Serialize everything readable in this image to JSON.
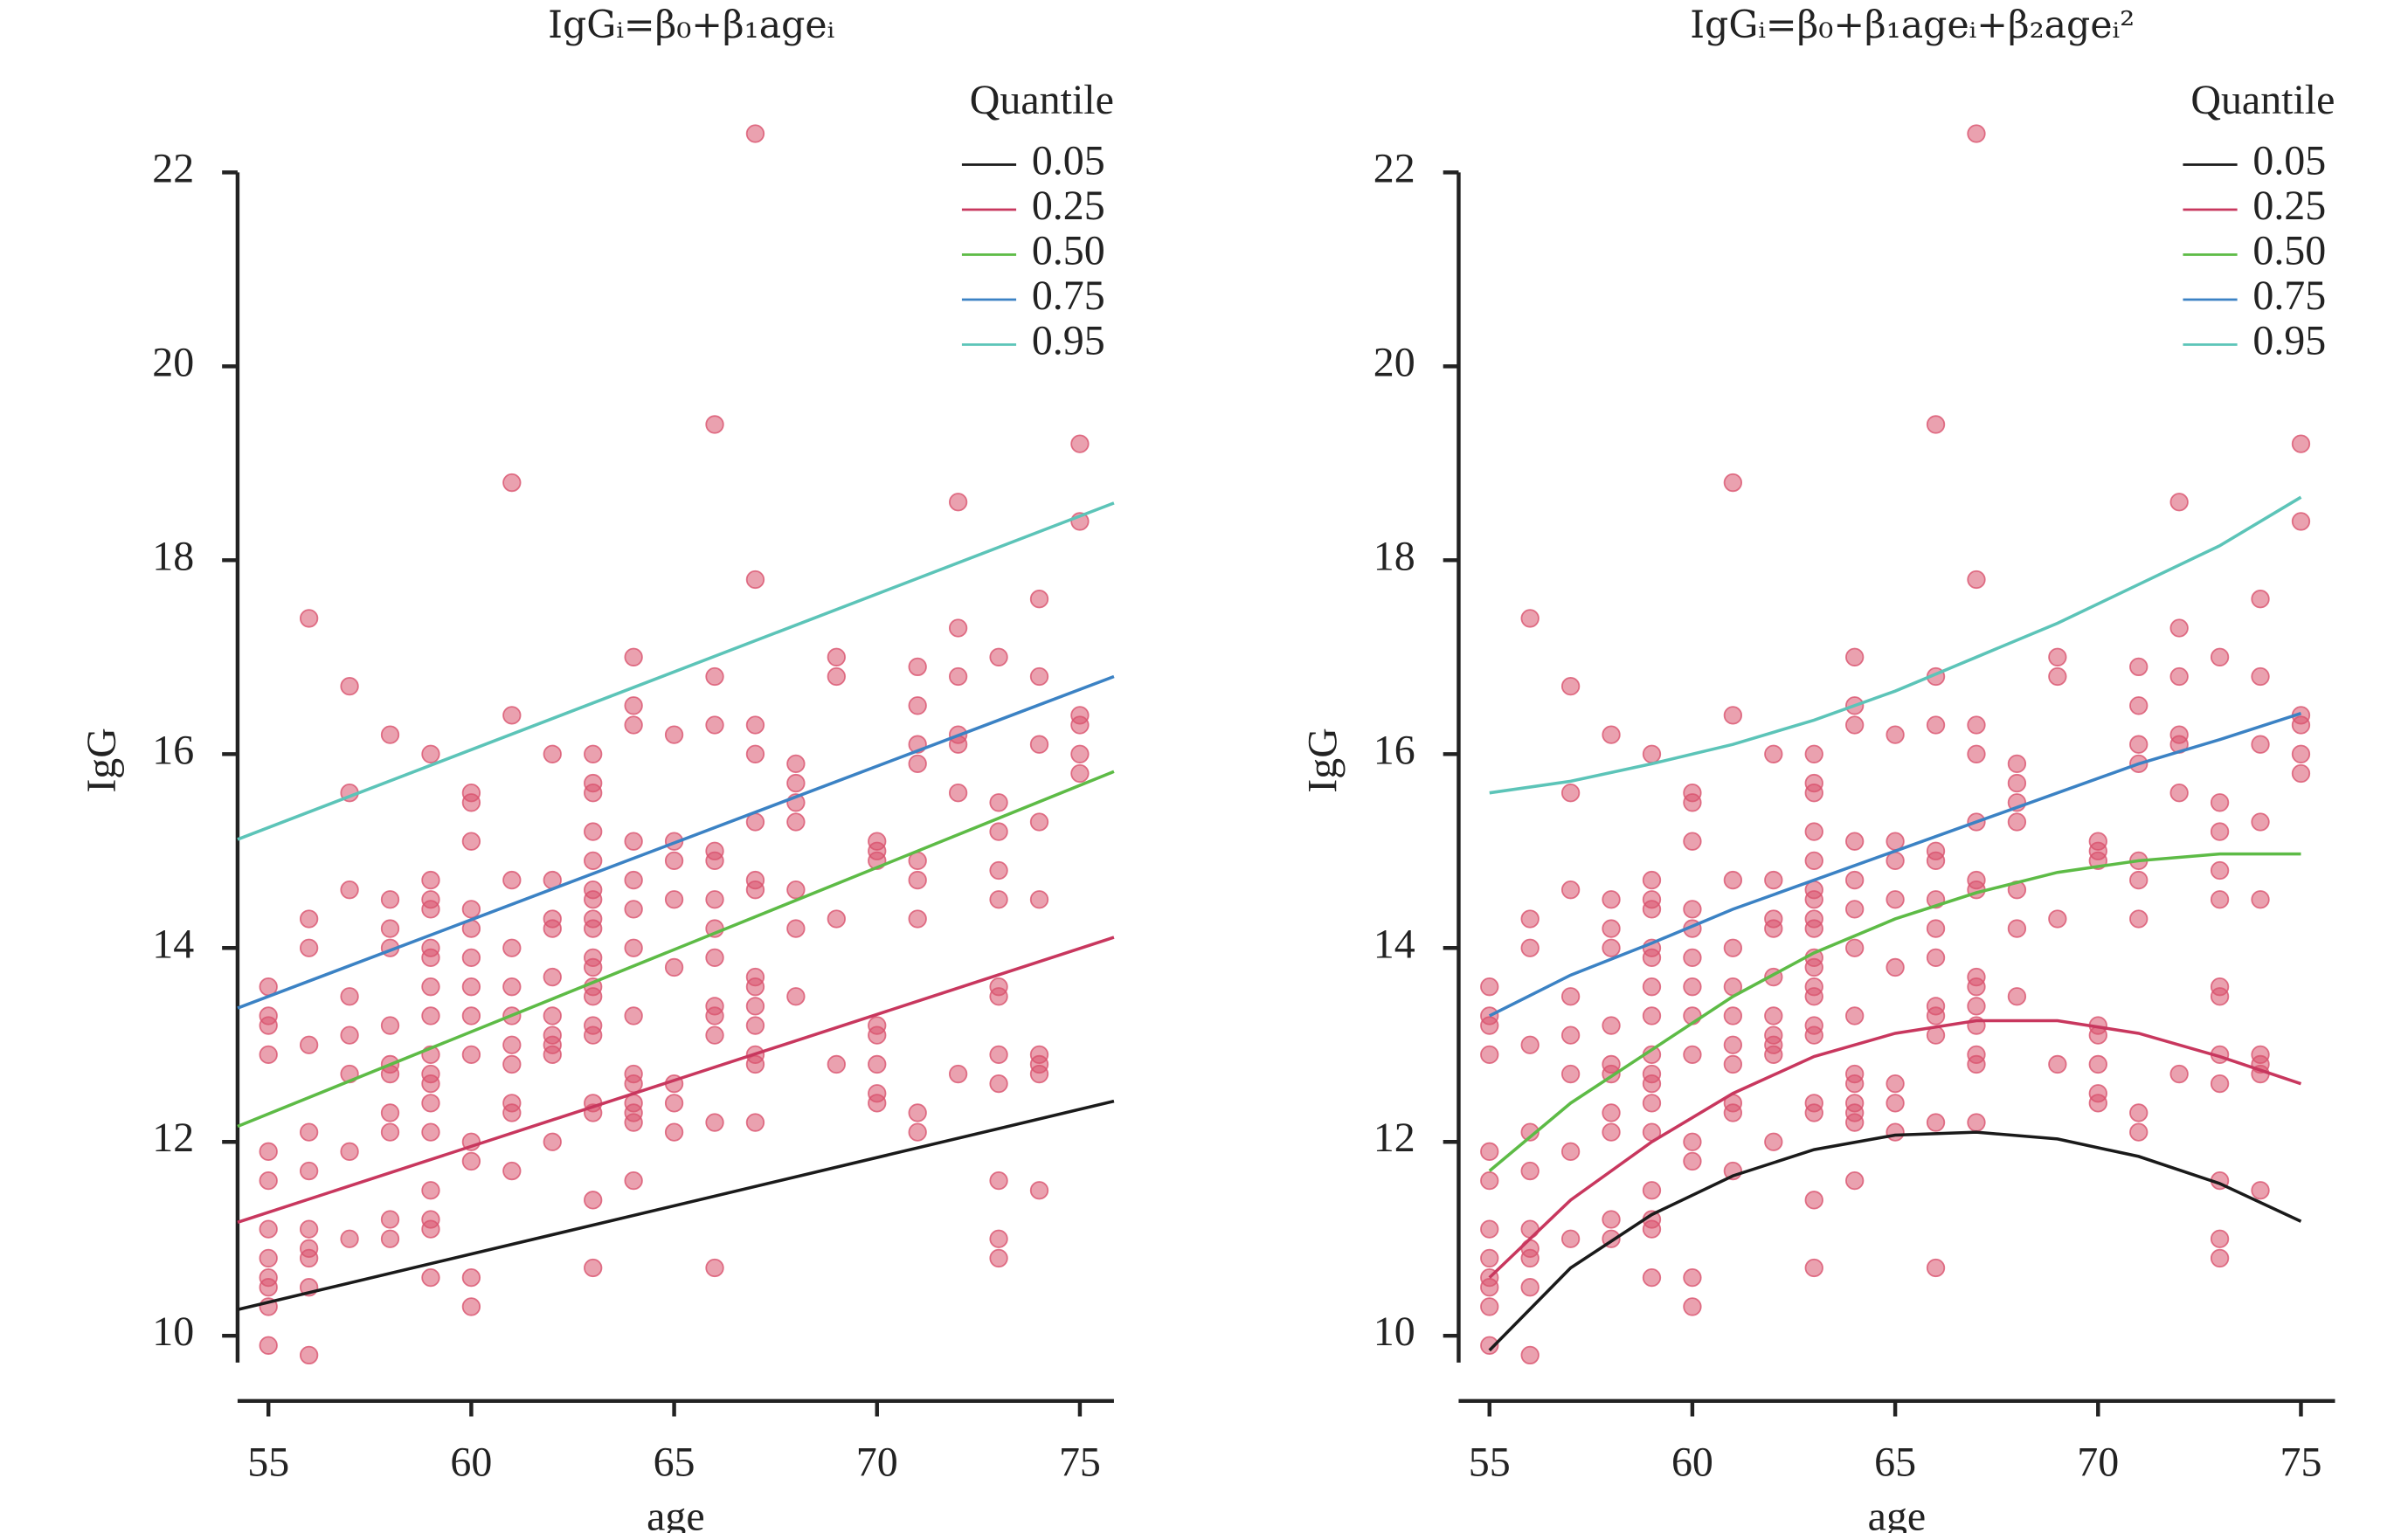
{
  "chart_data": [
    {
      "type": "scatter",
      "title": "IgGᵢ=β₀+β₁ageᵢ",
      "xlabel": "age",
      "ylabel": "IgG",
      "legend_title": "Quantile",
      "legend": "upper right",
      "xlim": [
        54.24,
        75.84
      ],
      "ylim": [
        9.5,
        22.5
      ],
      "xticks": [
        55,
        60,
        65,
        70,
        75
      ],
      "yticks": [
        10,
        12,
        14,
        16,
        18,
        20,
        22
      ],
      "points": {
        "color": "#d9536e",
        "x": [
          55,
          55,
          55,
          55,
          55,
          55,
          55,
          55,
          55,
          55,
          55,
          55,
          56,
          56,
          56,
          56,
          56,
          56,
          56,
          56,
          56,
          56,
          56,
          57,
          57,
          57,
          57,
          57,
          57,
          57,
          57,
          58,
          58,
          58,
          58,
          58,
          58,
          58,
          58,
          58,
          58,
          58,
          59,
          59,
          59,
          59,
          59,
          59,
          59,
          59,
          59,
          59,
          59,
          59,
          59,
          59,
          59,
          59,
          59,
          60,
          60,
          60,
          60,
          60,
          60,
          60,
          60,
          60,
          60,
          60,
          60,
          60,
          61,
          61,
          61,
          61,
          61,
          61,
          61,
          61,
          61,
          61,
          61,
          62,
          62,
          62,
          62,
          62,
          62,
          62,
          62,
          62,
          62,
          63,
          63,
          63,
          63,
          63,
          63,
          63,
          63,
          63,
          63,
          63,
          63,
          63,
          63,
          63,
          63,
          63,
          63,
          63,
          64,
          64,
          64,
          64,
          64,
          64,
          64,
          64,
          64,
          64,
          64,
          64,
          64,
          64,
          65,
          65,
          65,
          65,
          65,
          65,
          65,
          65,
          66,
          66,
          66,
          66,
          66,
          66,
          66,
          66,
          66,
          66,
          66,
          66,
          66,
          67,
          67,
          67,
          67,
          67,
          67,
          67,
          67,
          67,
          67,
          67,
          67,
          67,
          67,
          68,
          68,
          68,
          68,
          68,
          68,
          68,
          69,
          69,
          69,
          69,
          70,
          70,
          70,
          70,
          70,
          70,
          70,
          70,
          71,
          71,
          71,
          71,
          71,
          71,
          71,
          71,
          71,
          72,
          72,
          72,
          72,
          72,
          72,
          72,
          73,
          73,
          73,
          73,
          73,
          73,
          73,
          73,
          73,
          73,
          73,
          73,
          74,
          74,
          74,
          74,
          74,
          74,
          74,
          74,
          74,
          75,
          75,
          75,
          75,
          75,
          75
        ],
        "y": [
          13.6,
          13.3,
          13.2,
          12.9,
          11.9,
          11.6,
          11.1,
          10.8,
          10.6,
          10.5,
          10.3,
          9.9,
          17.4,
          14.3,
          14.0,
          13.0,
          12.1,
          11.7,
          11.1,
          10.9,
          10.8,
          10.5,
          9.8,
          16.7,
          15.6,
          14.6,
          13.5,
          13.1,
          12.7,
          11.9,
          11.0,
          16.2,
          14.5,
          14.2,
          14.0,
          13.2,
          12.8,
          12.7,
          12.3,
          12.1,
          11.2,
          11.0,
          16.0,
          14.7,
          14.5,
          14.4,
          14.0,
          13.9,
          13.6,
          13.3,
          12.9,
          12.7,
          12.6,
          12.4,
          12.1,
          11.5,
          11.2,
          11.1,
          10.6,
          15.6,
          15.5,
          15.1,
          14.4,
          14.2,
          13.9,
          13.6,
          13.3,
          12.9,
          12.0,
          11.8,
          10.6,
          10.3,
          18.8,
          16.4,
          14.7,
          14.0,
          13.6,
          13.3,
          13.0,
          12.8,
          12.4,
          12.3,
          11.7,
          16.0,
          14.7,
          14.3,
          14.2,
          13.7,
          13.3,
          13.1,
          13.0,
          12.9,
          12.0,
          16.0,
          15.7,
          15.6,
          15.2,
          14.9,
          14.6,
          14.5,
          14.3,
          14.2,
          13.9,
          13.8,
          13.6,
          13.5,
          13.2,
          13.1,
          12.4,
          12.3,
          11.4,
          10.7,
          17.0,
          16.5,
          16.3,
          15.1,
          14.7,
          14.4,
          14.0,
          13.3,
          12.7,
          12.6,
          12.4,
          12.3,
          12.2,
          11.6,
          16.2,
          15.1,
          14.9,
          14.5,
          13.8,
          12.6,
          12.4,
          12.1,
          19.4,
          16.8,
          16.3,
          15.0,
          14.9,
          14.5,
          14.2,
          13.9,
          13.4,
          13.3,
          13.1,
          12.2,
          10.7,
          22.4,
          17.8,
          16.3,
          16.0,
          15.3,
          14.7,
          14.6,
          13.7,
          13.6,
          13.4,
          13.2,
          12.9,
          12.8,
          12.2,
          15.9,
          15.7,
          15.5,
          15.3,
          14.6,
          14.2,
          13.5,
          17.0,
          16.8,
          14.3,
          12.8,
          15.1,
          15.0,
          14.9,
          13.2,
          13.1,
          12.8,
          12.5,
          12.4,
          16.9,
          16.5,
          16.1,
          15.9,
          14.9,
          14.7,
          14.3,
          12.3,
          12.1,
          18.6,
          17.3,
          16.8,
          16.2,
          16.1,
          15.6,
          12.7,
          17.0,
          15.5,
          15.2,
          14.8,
          14.5,
          13.6,
          13.5,
          12.9,
          12.6,
          11.6,
          11.0,
          10.8,
          17.6,
          16.8,
          16.1,
          15.3,
          14.5,
          12.9,
          12.8,
          12.7,
          11.5,
          19.2,
          18.4,
          16.4,
          16.3,
          16.0,
          15.8
        ]
      },
      "series": [
        {
          "name": "0.05",
          "color": "#1a1a1a",
          "x": [
            54.24,
            75.84
          ],
          "values": [
            10.27,
            12.42
          ]
        },
        {
          "name": "0.25",
          "color": "#c8375e",
          "x": [
            54.24,
            75.84
          ],
          "values": [
            11.17,
            14.11
          ]
        },
        {
          "name": "0.50",
          "color": "#5dbb46",
          "x": [
            54.24,
            75.84
          ],
          "values": [
            12.16,
            15.82
          ]
        },
        {
          "name": "0.75",
          "color": "#3b82c4",
          "x": [
            54.24,
            75.84
          ],
          "values": [
            13.38,
            16.8
          ]
        },
        {
          "name": "0.95",
          "color": "#5cc4b8",
          "x": [
            54.24,
            75.84
          ],
          "values": [
            15.12,
            18.59
          ]
        }
      ]
    },
    {
      "type": "scatter",
      "title": "IgGᵢ=β₀+β₁ageᵢ+β₂ageᵢ²",
      "xlabel": "age",
      "ylabel": "IgG",
      "legend_title": "Quantile",
      "legend": "upper right",
      "xlim": [
        54.24,
        75.84
      ],
      "ylim": [
        9.5,
        22.5
      ],
      "xticks": [
        55,
        60,
        65,
        70,
        75
      ],
      "yticks": [
        10,
        12,
        14,
        16,
        18,
        20,
        22
      ],
      "points": {
        "color": "#d9536e",
        "x": [
          55,
          55,
          55,
          55,
          55,
          55,
          55,
          55,
          55,
          55,
          55,
          55,
          56,
          56,
          56,
          56,
          56,
          56,
          56,
          56,
          56,
          56,
          56,
          57,
          57,
          57,
          57,
          57,
          57,
          57,
          57,
          58,
          58,
          58,
          58,
          58,
          58,
          58,
          58,
          58,
          58,
          58,
          59,
          59,
          59,
          59,
          59,
          59,
          59,
          59,
          59,
          59,
          59,
          59,
          59,
          59,
          59,
          59,
          59,
          60,
          60,
          60,
          60,
          60,
          60,
          60,
          60,
          60,
          60,
          60,
          60,
          60,
          61,
          61,
          61,
          61,
          61,
          61,
          61,
          61,
          61,
          61,
          61,
          62,
          62,
          62,
          62,
          62,
          62,
          62,
          62,
          62,
          62,
          63,
          63,
          63,
          63,
          63,
          63,
          63,
          63,
          63,
          63,
          63,
          63,
          63,
          63,
          63,
          63,
          63,
          63,
          63,
          64,
          64,
          64,
          64,
          64,
          64,
          64,
          64,
          64,
          64,
          64,
          64,
          64,
          64,
          65,
          65,
          65,
          65,
          65,
          65,
          65,
          65,
          66,
          66,
          66,
          66,
          66,
          66,
          66,
          66,
          66,
          66,
          66,
          66,
          66,
          67,
          67,
          67,
          67,
          67,
          67,
          67,
          67,
          67,
          67,
          67,
          67,
          67,
          67,
          68,
          68,
          68,
          68,
          68,
          68,
          68,
          69,
          69,
          69,
          69,
          70,
          70,
          70,
          70,
          70,
          70,
          70,
          70,
          71,
          71,
          71,
          71,
          71,
          71,
          71,
          71,
          71,
          72,
          72,
          72,
          72,
          72,
          72,
          72,
          73,
          73,
          73,
          73,
          73,
          73,
          73,
          73,
          73,
          73,
          73,
          73,
          74,
          74,
          74,
          74,
          74,
          74,
          74,
          74,
          74,
          75,
          75,
          75,
          75,
          75,
          75
        ],
        "y": [
          13.6,
          13.3,
          13.2,
          12.9,
          11.9,
          11.6,
          11.1,
          10.8,
          10.6,
          10.5,
          10.3,
          9.9,
          17.4,
          14.3,
          14.0,
          13.0,
          12.1,
          11.7,
          11.1,
          10.9,
          10.8,
          10.5,
          9.8,
          16.7,
          15.6,
          14.6,
          13.5,
          13.1,
          12.7,
          11.9,
          11.0,
          16.2,
          14.5,
          14.2,
          14.0,
          13.2,
          12.8,
          12.7,
          12.3,
          12.1,
          11.2,
          11.0,
          16.0,
          14.7,
          14.5,
          14.4,
          14.0,
          13.9,
          13.6,
          13.3,
          12.9,
          12.7,
          12.6,
          12.4,
          12.1,
          11.5,
          11.2,
          11.1,
          10.6,
          15.6,
          15.5,
          15.1,
          14.4,
          14.2,
          13.9,
          13.6,
          13.3,
          12.9,
          12.0,
          11.8,
          10.6,
          10.3,
          18.8,
          16.4,
          14.7,
          14.0,
          13.6,
          13.3,
          13.0,
          12.8,
          12.4,
          12.3,
          11.7,
          16.0,
          14.7,
          14.3,
          14.2,
          13.7,
          13.3,
          13.1,
          13.0,
          12.9,
          12.0,
          16.0,
          15.7,
          15.6,
          15.2,
          14.9,
          14.6,
          14.5,
          14.3,
          14.2,
          13.9,
          13.8,
          13.6,
          13.5,
          13.2,
          13.1,
          12.4,
          12.3,
          11.4,
          10.7,
          17.0,
          16.5,
          16.3,
          15.1,
          14.7,
          14.4,
          14.0,
          13.3,
          12.7,
          12.6,
          12.4,
          12.3,
          12.2,
          11.6,
          16.2,
          15.1,
          14.9,
          14.5,
          13.8,
          12.6,
          12.4,
          12.1,
          19.4,
          16.8,
          16.3,
          15.0,
          14.9,
          14.5,
          14.2,
          13.9,
          13.4,
          13.3,
          13.1,
          12.2,
          10.7,
          22.4,
          17.8,
          16.3,
          16.0,
          15.3,
          14.7,
          14.6,
          13.7,
          13.6,
          13.4,
          13.2,
          12.9,
          12.8,
          12.2,
          15.9,
          15.7,
          15.5,
          15.3,
          14.6,
          14.2,
          13.5,
          17.0,
          16.8,
          14.3,
          12.8,
          15.1,
          15.0,
          14.9,
          13.2,
          13.1,
          12.8,
          12.5,
          12.4,
          16.9,
          16.5,
          16.1,
          15.9,
          14.9,
          14.7,
          14.3,
          12.3,
          12.1,
          18.6,
          17.3,
          16.8,
          16.2,
          16.1,
          15.6,
          12.7,
          17.0,
          15.5,
          15.2,
          14.8,
          14.5,
          13.6,
          13.5,
          12.9,
          12.6,
          11.6,
          11.0,
          10.8,
          17.6,
          16.8,
          16.1,
          15.3,
          14.5,
          12.9,
          12.8,
          12.7,
          11.5,
          19.2,
          18.4,
          16.4,
          16.3,
          16.0,
          15.8
        ]
      },
      "series": [
        {
          "name": "0.05",
          "color": "#1a1a1a",
          "x": [
            55,
            57,
            59,
            61,
            63,
            65,
            67,
            69,
            71,
            73,
            75
          ],
          "values": [
            9.85,
            10.7,
            11.25,
            11.65,
            11.92,
            12.07,
            12.1,
            12.03,
            11.85,
            11.57,
            11.18
          ]
        },
        {
          "name": "0.25",
          "color": "#c8375e",
          "x": [
            55,
            57,
            59,
            61,
            63,
            65,
            67,
            69,
            71,
            73,
            75
          ],
          "values": [
            10.6,
            11.4,
            12.0,
            12.5,
            12.88,
            13.12,
            13.25,
            13.25,
            13.12,
            12.88,
            12.6
          ]
        },
        {
          "name": "0.50",
          "color": "#5dbb46",
          "x": [
            55,
            57,
            59,
            61,
            63,
            65,
            67,
            69,
            71,
            73,
            75
          ],
          "values": [
            11.7,
            12.4,
            12.95,
            13.5,
            13.95,
            14.3,
            14.57,
            14.78,
            14.9,
            14.97,
            14.97
          ]
        },
        {
          "name": "0.75",
          "color": "#3b82c4",
          "x": [
            55,
            57,
            59,
            61,
            63,
            65,
            67,
            69,
            71,
            73,
            75
          ],
          "values": [
            13.3,
            13.72,
            14.05,
            14.4,
            14.7,
            15.0,
            15.3,
            15.6,
            15.9,
            16.15,
            16.42
          ]
        },
        {
          "name": "0.95",
          "color": "#5cc4b8",
          "x": [
            55,
            57,
            59,
            61,
            63,
            65,
            67,
            69,
            71,
            73,
            75
          ],
          "values": [
            15.6,
            15.72,
            15.9,
            16.1,
            16.35,
            16.65,
            17.0,
            17.35,
            17.75,
            18.15,
            18.65
          ]
        }
      ]
    }
  ]
}
